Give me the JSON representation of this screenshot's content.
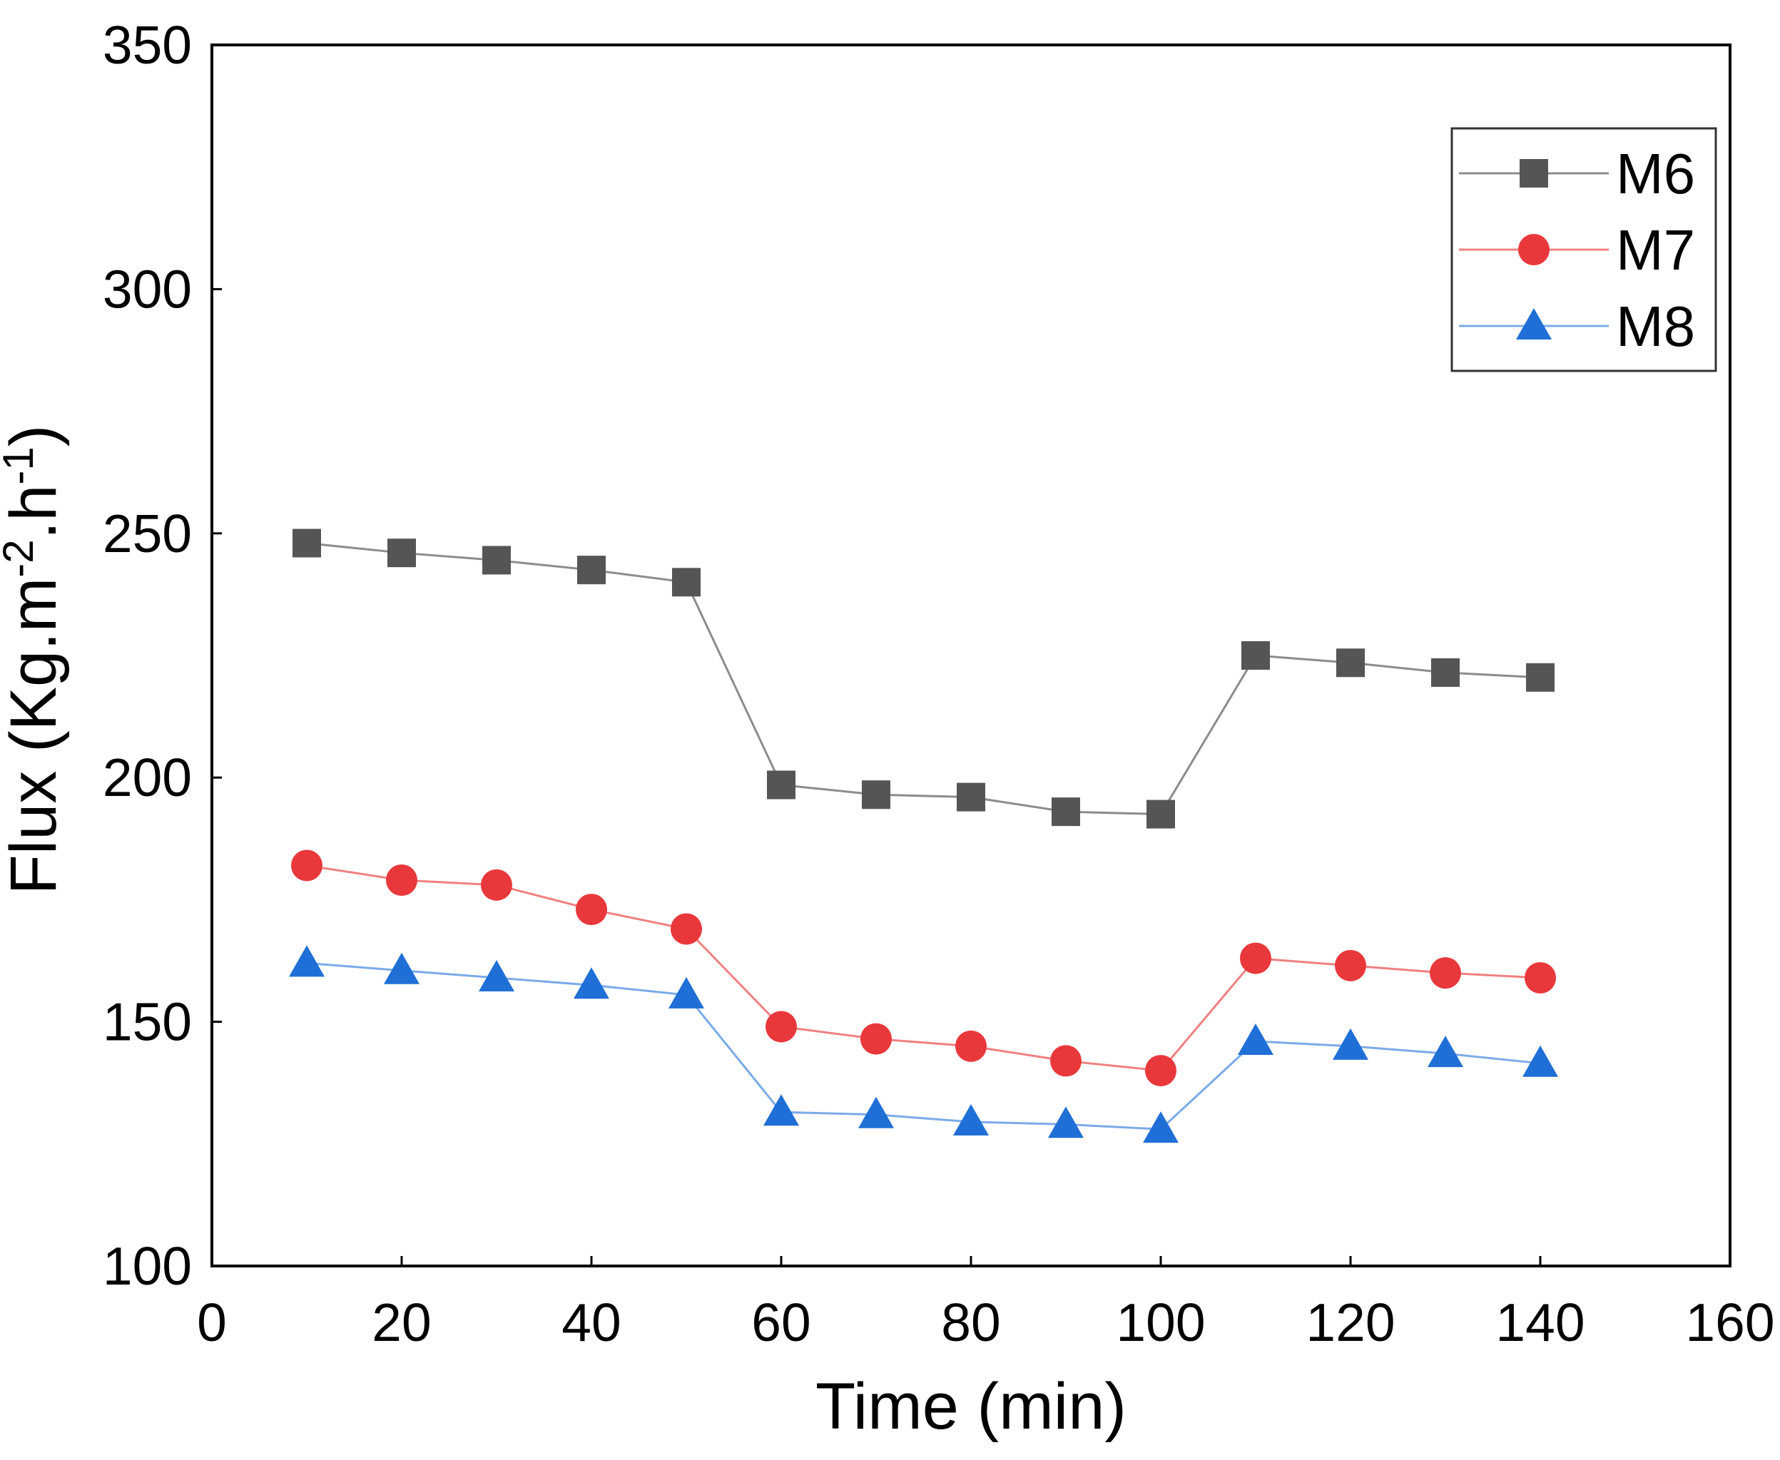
{
  "chart_data": {
    "type": "line",
    "title": "",
    "xlabel": "Time (min)",
    "ylabel_main": "Flux (Kg.m",
    "ylabel_sup1": "-2",
    "ylabel_mid": ".h",
    "ylabel_sup2": "-1",
    "ylabel_end": ")",
    "xlim": [
      0,
      160
    ],
    "ylim": [
      100,
      350
    ],
    "xticks": [
      0,
      20,
      40,
      60,
      80,
      100,
      120,
      140,
      160
    ],
    "yticks": [
      100,
      150,
      200,
      250,
      300,
      350
    ],
    "grid": false,
    "legend_position": "top-right",
    "x": [
      10,
      20,
      30,
      40,
      50,
      60,
      70,
      80,
      90,
      100,
      110,
      120,
      130,
      140
    ],
    "series": [
      {
        "name": "M6",
        "marker": "square",
        "color": "#555555",
        "line_color": "#8c8c8c",
        "values": [
          248,
          246,
          244.5,
          242.5,
          240,
          198.5,
          196.5,
          196,
          193,
          192.5,
          225,
          223.5,
          221.5,
          220.5
        ]
      },
      {
        "name": "M7",
        "marker": "circle",
        "color": "#e8383c",
        "line_color": "#f08080",
        "values": [
          182,
          179,
          178,
          173,
          169,
          149,
          146.5,
          145,
          142,
          140,
          163,
          161.5,
          160,
          159
        ]
      },
      {
        "name": "M8",
        "marker": "triangle",
        "color": "#1f6fd6",
        "line_color": "#7aaae8",
        "values": [
          162,
          160.5,
          159,
          157.5,
          155.5,
          131.5,
          131,
          129.5,
          129,
          128,
          146,
          145,
          143.5,
          141.5
        ]
      }
    ]
  }
}
